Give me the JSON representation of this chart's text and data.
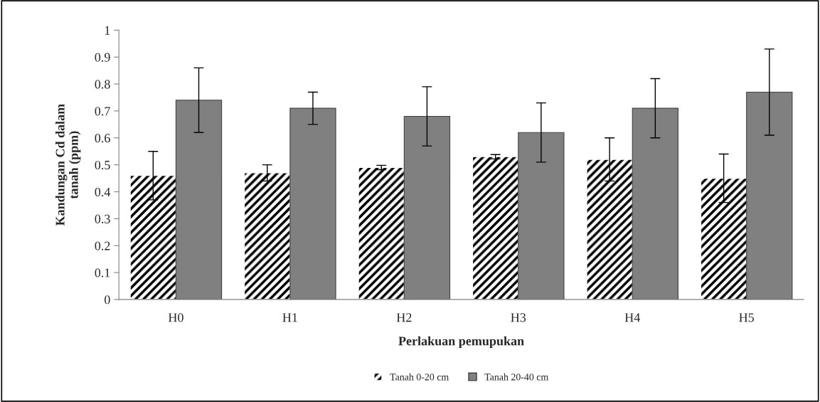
{
  "chart_data": {
    "type": "bar",
    "xlabel": "Perlakuan pemupukan",
    "ylabel": "Kandungan Cd dalam\ntanah (ppm)",
    "categories": [
      "H0",
      "H1",
      "H2",
      "H3",
      "H4",
      "H5"
    ],
    "series": [
      {
        "name": "Tanah 0-20 cm",
        "color": "#ffffff",
        "values": [
          0.46,
          0.47,
          0.49,
          0.53,
          0.52,
          0.45
        ],
        "errors": [
          0.09,
          0.03,
          0.008,
          0.008,
          0.08,
          0.09
        ]
      },
      {
        "name": "Tanah 20-40 cm",
        "color": "#808080",
        "values": [
          0.74,
          0.71,
          0.68,
          0.62,
          0.71,
          0.77
        ],
        "errors": [
          0.12,
          0.06,
          0.11,
          0.11,
          0.11,
          0.16
        ]
      }
    ],
    "ylim": [
      0,
      1
    ],
    "yticks": [
      0,
      0.1,
      0.2,
      0.3,
      0.4,
      0.5,
      0.6,
      0.7,
      0.8,
      0.9,
      1
    ],
    "grid": false,
    "legend": "bottom"
  }
}
